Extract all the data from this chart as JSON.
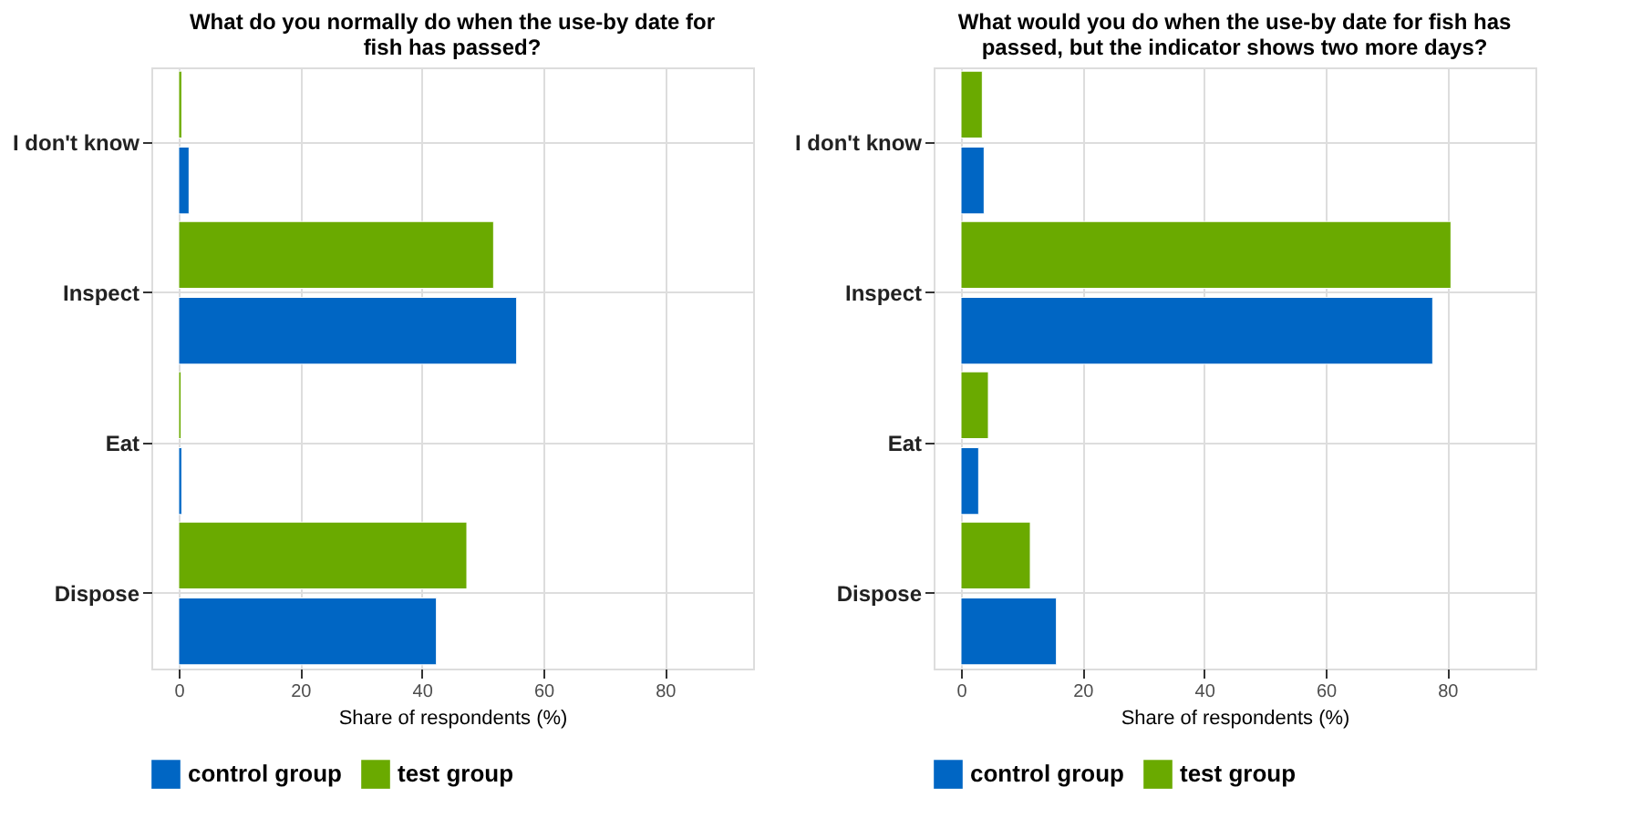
{
  "chart_data": [
    {
      "type": "bar",
      "orientation": "horizontal",
      "title": "What do you normally do when the use-by date for fish has passed?",
      "xlabel": "Share of respondents (%)",
      "categories": [
        "I don't know",
        "Inspect",
        "Eat",
        "Dispose"
      ],
      "series": [
        {
          "name": "control group",
          "color": "#0066c4",
          "values": [
            1.7,
            55.6,
            0.5,
            42.4
          ]
        },
        {
          "name": "test group",
          "color": "#6aaa00",
          "values": [
            0.5,
            51.8,
            0.4,
            47.4
          ]
        }
      ],
      "xlim": [
        -4.5,
        94.5
      ],
      "xticks": [
        0,
        20,
        40,
        60,
        80
      ],
      "grid": true,
      "legend": "bottom"
    },
    {
      "type": "bar",
      "orientation": "horizontal",
      "title": "What would you do when the use-by date for fish has passed, but the indicator shows two more days?",
      "xlabel": "Share of respondents (%)",
      "categories": [
        "I don't know",
        "Inspect",
        "Eat",
        "Dispose"
      ],
      "series": [
        {
          "name": "control group",
          "color": "#0066c4",
          "values": [
            3.8,
            77.6,
            2.9,
            15.7
          ]
        },
        {
          "name": "test group",
          "color": "#6aaa00",
          "values": [
            3.5,
            80.6,
            4.5,
            11.4
          ]
        }
      ],
      "xlim": [
        -4.5,
        94.5
      ],
      "xticks": [
        0,
        20,
        40,
        60,
        80
      ],
      "grid": true,
      "legend": "bottom"
    }
  ]
}
